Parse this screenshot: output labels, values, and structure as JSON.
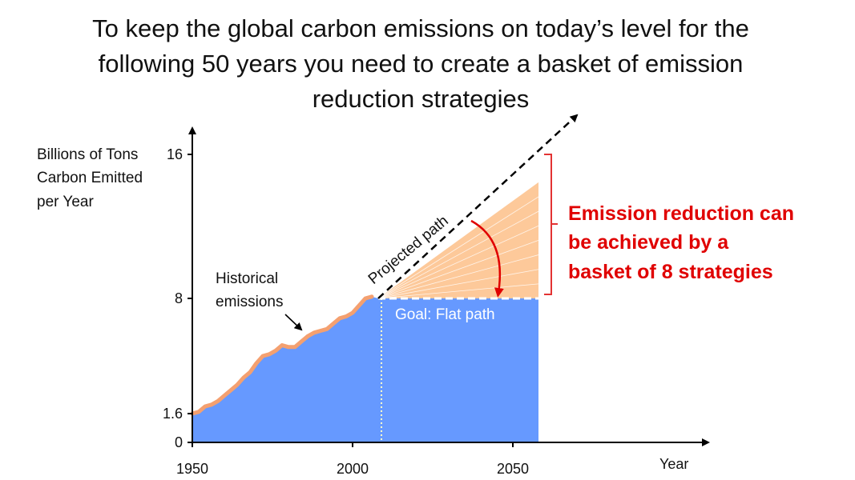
{
  "title_lines": [
    "To keep the global carbon emissions on today’s level for the",
    "following 50 years you need to create a basket of emission",
    "reduction strategies"
  ],
  "chart_data": {
    "type": "area",
    "ylabel_lines": [
      "Billions of Tons",
      "Carbon Emitted",
      "per Year"
    ],
    "xlabel": "Year",
    "x_ticks": [
      "1950",
      "2000",
      "2050"
    ],
    "y_ticks": [
      "0",
      "1.6",
      "8",
      "16"
    ],
    "xlim": [
      1950,
      2110
    ],
    "ylim": [
      0,
      16
    ],
    "series": [
      {
        "key": "historical",
        "x": [
          1950,
          1952,
          1954,
          1956,
          1958,
          1960,
          1962,
          1964,
          1966,
          1968,
          1970,
          1972,
          1974,
          1976,
          1978,
          1980,
          1982,
          1984,
          1986,
          1988,
          1990,
          1992,
          1994,
          1996,
          1998,
          2000,
          2002,
          2004,
          2006
        ],
        "y": [
          1.6,
          1.7,
          2.0,
          2.1,
          2.3,
          2.6,
          2.9,
          3.2,
          3.6,
          3.9,
          4.4,
          4.8,
          4.9,
          5.1,
          5.4,
          5.3,
          5.3,
          5.6,
          5.9,
          6.1,
          6.2,
          6.3,
          6.6,
          6.9,
          7.0,
          7.2,
          7.6,
          8.0,
          8.1
        ]
      },
      {
        "key": "flat_goal",
        "x": [
          2008,
          2058
        ],
        "y": [
          8,
          8
        ]
      },
      {
        "key": "projected",
        "x": [
          2008,
          2070
        ],
        "y": [
          8,
          16
        ]
      }
    ],
    "annotations": {
      "historical": [
        "Historical",
        "emissions"
      ],
      "projected": "Projected path",
      "goal": "Goal: Flat path",
      "reduction": [
        "Emission reduction can",
        "be achieved by a",
        "basket of 8 strategies"
      ]
    },
    "strategy_wedges": 8,
    "colors": {
      "historical_fill": "#6699ff",
      "historical_line": "#f4a070",
      "wedge_fill": "#fdc99a",
      "reduction_text": "#e00000",
      "bracket": "#e33333"
    }
  }
}
